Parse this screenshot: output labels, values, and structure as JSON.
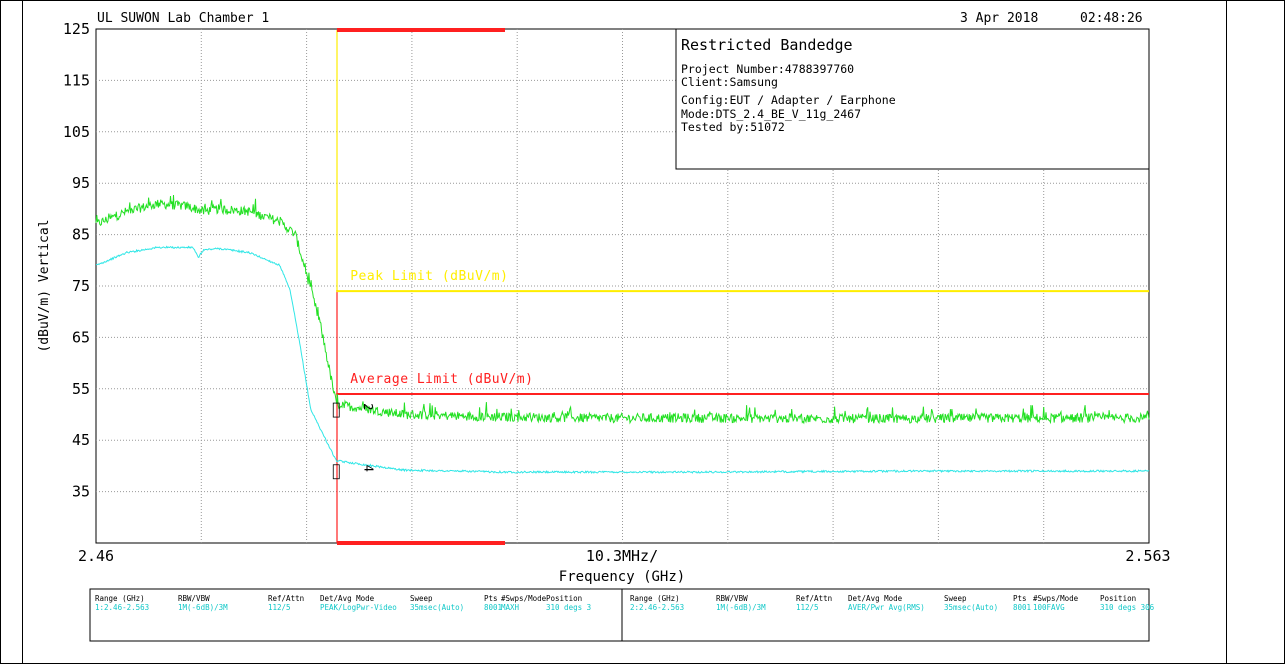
{
  "header": {
    "lab": "UL SUWON Lab Chamber 1",
    "date": "3 Apr 2018",
    "time": "02:48:26"
  },
  "info_box": {
    "title": "Restricted Bandedge",
    "lines": [
      "Project Number:4788397760",
      "Client:Samsung",
      "Config:EUT / Adapter / Earphone",
      "Mode:DTS_2.4_BE_V_11g_2467",
      "Tested by:51072"
    ]
  },
  "chart_data": {
    "type": "line",
    "xlabel": "Frequency (GHz)",
    "ylabel": "(dBuV/m) Vertical",
    "x_start_label": "2.46",
    "x_end_label": "2.563",
    "x_center_label": "10.3MHz/",
    "xlim": [
      2.46,
      2.563
    ],
    "ylim": [
      25,
      125
    ],
    "yticks": [
      125,
      115,
      105,
      95,
      85,
      75,
      65,
      55,
      45,
      35
    ],
    "grid": true,
    "band_edge_freq": 2.4835,
    "limits": [
      {
        "name": "Peak Limit (dBuV/m)",
        "value": 74,
        "color": "#ffee00"
      },
      {
        "name": "Average Limit (dBuV/m)",
        "value": 54,
        "color": "#ff2020"
      }
    ],
    "markers": [
      {
        "label": "2",
        "x": 2.4835,
        "y": 53
      },
      {
        "label": "4",
        "x": 2.4835,
        "y": 41
      }
    ],
    "series": [
      {
        "color": "#22e022",
        "x": [
          2.46,
          2.463,
          2.466,
          2.469,
          2.4705,
          2.472,
          2.475,
          2.478,
          2.4795,
          2.4805,
          2.482,
          2.4835,
          2.49,
          2.5,
          2.51,
          2.52,
          2.53,
          2.54,
          2.55,
          2.563
        ],
        "y": [
          87,
          89.5,
          91,
          90.5,
          89.5,
          90,
          89.5,
          87.5,
          85,
          78,
          67,
          52,
          50,
          49.5,
          49.3,
          49.3,
          49.2,
          49.2,
          49.3,
          49.3
        ]
      },
      {
        "color": "#30e6e6",
        "x": [
          2.46,
          2.463,
          2.466,
          2.4695,
          2.47,
          2.4705,
          2.472,
          2.475,
          2.478,
          2.479,
          2.48,
          2.481,
          2.4835,
          2.49,
          2.5,
          2.51,
          2.52,
          2.53,
          2.54,
          2.55,
          2.563
        ],
        "y": [
          79,
          81.5,
          82.5,
          82.5,
          80.5,
          82,
          82.3,
          81.5,
          79,
          74,
          63,
          51,
          41,
          39.2,
          38.8,
          38.8,
          38.8,
          38.9,
          39,
          39,
          39
        ]
      }
    ]
  },
  "settings_table": {
    "headers": [
      "Range (GHz)",
      "RBW/VBW",
      "Ref/Attn",
      "Det/Avg Mode",
      "Sweep",
      "Pts",
      "#Swps/Mode",
      "Position"
    ],
    "rows": [
      [
        "1:2.46-2.563",
        "1M(-6dB)/3M",
        "112/5",
        "PEAK/LogPwr-Video",
        "35msec(Auto)",
        "8001",
        "MAXH",
        "310 degs 3"
      ],
      [
        "2:2.46-2.563",
        "1M(-6dB)/3M",
        "112/5",
        "AVER/Pwr Avg(RMS)",
        "35msec(Auto)",
        "8001",
        "100FAVG",
        "310 degs 306"
      ]
    ]
  }
}
